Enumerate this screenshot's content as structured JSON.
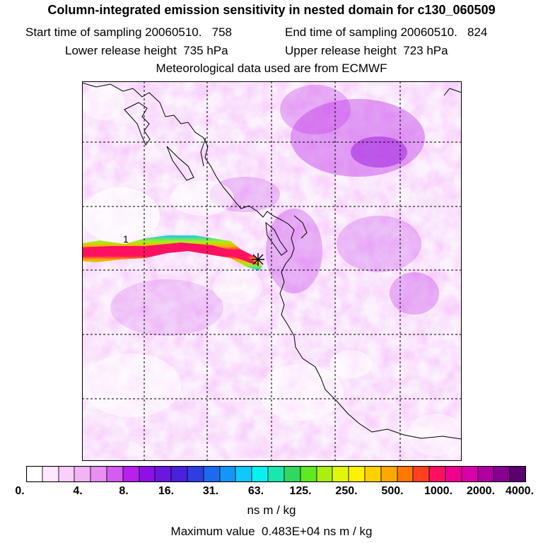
{
  "header": {
    "title": "Column-integrated emission sensitivity in nested domain for c130_060509",
    "start_label": "Start time of sampling 20060510.   758",
    "end_label": "End time of sampling 20060510.   824",
    "lower_label": "Lower release height  735 hPa",
    "upper_label": "Upper release height  723 hPa",
    "met_label": "Meteorological data used are from ECMWF"
  },
  "map": {
    "release_marker": "asterisk-icon",
    "trajectory_label": "1"
  },
  "colorbar": {
    "tick_labels": [
      "0.",
      "4.",
      "8.",
      "16.",
      "31.",
      "63.",
      "125.",
      "250.",
      "500.",
      "1000.",
      "2000.",
      "4000."
    ],
    "colors": [
      "#ffffff",
      "#fde8fd",
      "#f8d0fa",
      "#f1b4f5",
      "#e890f2",
      "#d45cf0",
      "#b820ec",
      "#8e10e8",
      "#6a18e0",
      "#4a22dc",
      "#2e3ee4",
      "#1c6af0",
      "#1496f8",
      "#10c8fc",
      "#08f0f0",
      "#18e8b0",
      "#30d860",
      "#60e820",
      "#a8f010",
      "#e0f808",
      "#fff000",
      "#ffd000",
      "#ffa800",
      "#ff7800",
      "#ff4020",
      "#ff1060",
      "#f00090",
      "#d800a8",
      "#b000a0",
      "#880090",
      "#5c0070"
    ],
    "unit": "ns m / kg",
    "max_label": "Maximum value  0.483E+04 ns m / kg"
  }
}
